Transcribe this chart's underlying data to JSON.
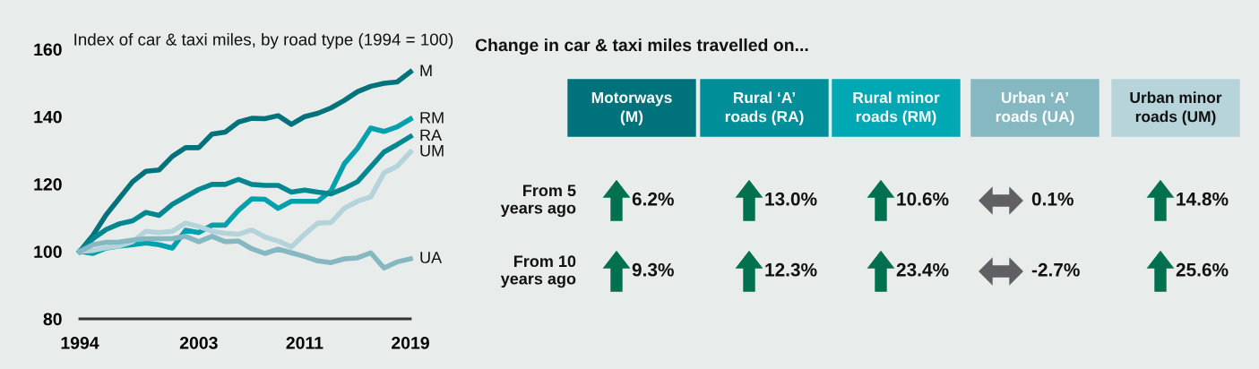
{
  "chart_data": [
    {
      "type": "line",
      "title": "Index of car & taxi miles, by road type (1994 = 100)",
      "x": [
        1994,
        1995,
        1996,
        1997,
        1998,
        1999,
        2000,
        2001,
        2002,
        2003,
        2004,
        2005,
        2006,
        2007,
        2008,
        2009,
        2010,
        2011,
        2012,
        2013,
        2014,
        2015,
        2016,
        2017,
        2018,
        2019
      ],
      "series": [
        {
          "name": "M",
          "color": "#00727c",
          "values": [
            100,
            104.8,
            110.9,
            115.8,
            120.7,
            123.8,
            124.2,
            128.2,
            130.8,
            130.8,
            134.8,
            135.4,
            138.4,
            139.5,
            139.4,
            140.3,
            137.7,
            140.0,
            141.0,
            142.6,
            144.8,
            147.4,
            149.0,
            149.9,
            150.3,
            153.3
          ]
        },
        {
          "name": "RM",
          "color": "#00a0ac",
          "values": [
            100,
            99.4,
            101.0,
            101.6,
            102.0,
            102.5,
            102.0,
            101.0,
            106.3,
            105.6,
            107.8,
            107.8,
            112.2,
            115.6,
            115.5,
            112.8,
            114.9,
            114.9,
            114.9,
            118.0,
            126.0,
            130.6,
            136.6,
            135.6,
            137.0,
            139.3
          ]
        },
        {
          "name": "RA",
          "color": "#008790",
          "values": [
            100,
            103.8,
            106.5,
            108.2,
            109.1,
            111.6,
            110.7,
            114.0,
            116.2,
            118.4,
            119.9,
            119.9,
            121.4,
            119.9,
            119.6,
            119.6,
            117.6,
            118.2,
            117.6,
            117.1,
            118.7,
            120.7,
            125.1,
            129.5,
            131.7,
            134.1
          ]
        },
        {
          "name": "UM",
          "color": "#b5d3da",
          "values": [
            100,
            100.3,
            101.1,
            101.6,
            102.9,
            106.0,
            105.6,
            106.0,
            108.4,
            107.4,
            106.0,
            105.4,
            105.1,
            106.4,
            104.3,
            103.1,
            101.3,
            105.1,
            108.4,
            108.6,
            112.8,
            114.9,
            116.2,
            123.3,
            125.3,
            129.5
          ]
        },
        {
          "name": "UA",
          "color": "#86b8c2",
          "values": [
            100,
            102.0,
            102.7,
            102.8,
            103.4,
            103.8,
            103.8,
            103.8,
            104.5,
            102.9,
            104.5,
            102.9,
            103.1,
            100.8,
            99.4,
            100.7,
            99.6,
            98.5,
            97.2,
            96.7,
            97.8,
            98.1,
            99.6,
            95.1,
            96.9,
            97.8
          ]
        }
      ],
      "xlim": [
        1994,
        2019
      ],
      "xticks": [
        1994,
        2003,
        2011,
        2019
      ],
      "ylim": [
        80,
        160
      ],
      "yticks": [
        80,
        100,
        120,
        140,
        160
      ],
      "grid": false,
      "legend": false,
      "marker": "none",
      "line_style": "solid"
    },
    {
      "type": "other",
      "title": "Change in car & taxi miles travelled on...",
      "categories": [
        "Motorways\n(M)",
        "Rural ‘A’\nroads (RA)",
        "Rural minor\nroads (RM)",
        "Urban ‘A’\nroads (UA)",
        "Urban minor\nroads (UM)"
      ],
      "colors": [
        "#00727c",
        "#008f99",
        "#00a8b4",
        "#86b8c2",
        "#b7d4da"
      ],
      "y_categories": [
        "From 5\nyears ago",
        "From 10\nyears ago"
      ],
      "cell_labels": [
        [
          "6.2%",
          "13.0%",
          "10.6%",
          "0.1%",
          "14.8%"
        ],
        [
          "9.3%",
          "12.3%",
          "23.4%",
          "-2.7%",
          "25.6%"
        ]
      ]
    }
  ]
}
